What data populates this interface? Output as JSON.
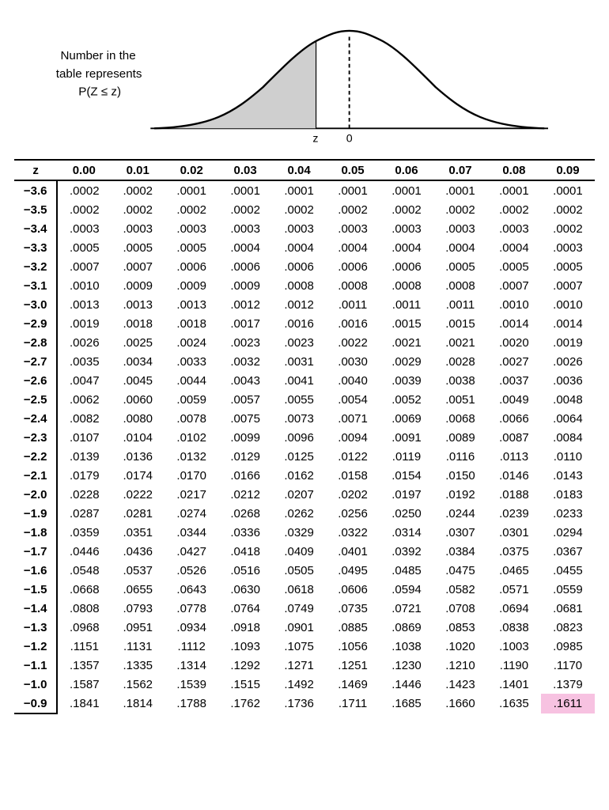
{
  "diagram": {
    "caption_line1": "Number in the",
    "caption_line2": "table represents",
    "caption_line3": "P(Z ≤ z)",
    "z_label": "z",
    "zero_label": "0",
    "curve_stroke": "#000000",
    "curve_fill_shaded": "#cfcfcf",
    "background": "#ffffff",
    "axis_stroke": "#000000"
  },
  "table": {
    "highlight_color": "#f7c2e1",
    "border_color": "#000000",
    "font_size": 15,
    "columns": [
      "z",
      "0.00",
      "0.01",
      "0.02",
      "0.03",
      "0.04",
      "0.05",
      "0.06",
      "0.07",
      "0.08",
      "0.09"
    ],
    "highlighted": {
      "row_index": 27,
      "col_index": 10
    },
    "rows": [
      [
        "−3.6",
        ".0002",
        ".0002",
        ".0001",
        ".0001",
        ".0001",
        ".0001",
        ".0001",
        ".0001",
        ".0001",
        ".0001"
      ],
      [
        "−3.5",
        ".0002",
        ".0002",
        ".0002",
        ".0002",
        ".0002",
        ".0002",
        ".0002",
        ".0002",
        ".0002",
        ".0002"
      ],
      [
        "−3.4",
        ".0003",
        ".0003",
        ".0003",
        ".0003",
        ".0003",
        ".0003",
        ".0003",
        ".0003",
        ".0003",
        ".0002"
      ],
      [
        "−3.3",
        ".0005",
        ".0005",
        ".0005",
        ".0004",
        ".0004",
        ".0004",
        ".0004",
        ".0004",
        ".0004",
        ".0003"
      ],
      [
        "−3.2",
        ".0007",
        ".0007",
        ".0006",
        ".0006",
        ".0006",
        ".0006",
        ".0006",
        ".0005",
        ".0005",
        ".0005"
      ],
      [
        "−3.1",
        ".0010",
        ".0009",
        ".0009",
        ".0009",
        ".0008",
        ".0008",
        ".0008",
        ".0008",
        ".0007",
        ".0007"
      ],
      [
        "−3.0",
        ".0013",
        ".0013",
        ".0013",
        ".0012",
        ".0012",
        ".0011",
        ".0011",
        ".0011",
        ".0010",
        ".0010"
      ],
      [
        "−2.9",
        ".0019",
        ".0018",
        ".0018",
        ".0017",
        ".0016",
        ".0016",
        ".0015",
        ".0015",
        ".0014",
        ".0014"
      ],
      [
        "−2.8",
        ".0026",
        ".0025",
        ".0024",
        ".0023",
        ".0023",
        ".0022",
        ".0021",
        ".0021",
        ".0020",
        ".0019"
      ],
      [
        "−2.7",
        ".0035",
        ".0034",
        ".0033",
        ".0032",
        ".0031",
        ".0030",
        ".0029",
        ".0028",
        ".0027",
        ".0026"
      ],
      [
        "−2.6",
        ".0047",
        ".0045",
        ".0044",
        ".0043",
        ".0041",
        ".0040",
        ".0039",
        ".0038",
        ".0037",
        ".0036"
      ],
      [
        "−2.5",
        ".0062",
        ".0060",
        ".0059",
        ".0057",
        ".0055",
        ".0054",
        ".0052",
        ".0051",
        ".0049",
        ".0048"
      ],
      [
        "−2.4",
        ".0082",
        ".0080",
        ".0078",
        ".0075",
        ".0073",
        ".0071",
        ".0069",
        ".0068",
        ".0066",
        ".0064"
      ],
      [
        "−2.3",
        ".0107",
        ".0104",
        ".0102",
        ".0099",
        ".0096",
        ".0094",
        ".0091",
        ".0089",
        ".0087",
        ".0084"
      ],
      [
        "−2.2",
        ".0139",
        ".0136",
        ".0132",
        ".0129",
        ".0125",
        ".0122",
        ".0119",
        ".0116",
        ".0113",
        ".0110"
      ],
      [
        "−2.1",
        ".0179",
        ".0174",
        ".0170",
        ".0166",
        ".0162",
        ".0158",
        ".0154",
        ".0150",
        ".0146",
        ".0143"
      ],
      [
        "−2.0",
        ".0228",
        ".0222",
        ".0217",
        ".0212",
        ".0207",
        ".0202",
        ".0197",
        ".0192",
        ".0188",
        ".0183"
      ],
      [
        "−1.9",
        ".0287",
        ".0281",
        ".0274",
        ".0268",
        ".0262",
        ".0256",
        ".0250",
        ".0244",
        ".0239",
        ".0233"
      ],
      [
        "−1.8",
        ".0359",
        ".0351",
        ".0344",
        ".0336",
        ".0329",
        ".0322",
        ".0314",
        ".0307",
        ".0301",
        ".0294"
      ],
      [
        "−1.7",
        ".0446",
        ".0436",
        ".0427",
        ".0418",
        ".0409",
        ".0401",
        ".0392",
        ".0384",
        ".0375",
        ".0367"
      ],
      [
        "−1.6",
        ".0548",
        ".0537",
        ".0526",
        ".0516",
        ".0505",
        ".0495",
        ".0485",
        ".0475",
        ".0465",
        ".0455"
      ],
      [
        "−1.5",
        ".0668",
        ".0655",
        ".0643",
        ".0630",
        ".0618",
        ".0606",
        ".0594",
        ".0582",
        ".0571",
        ".0559"
      ],
      [
        "−1.4",
        ".0808",
        ".0793",
        ".0778",
        ".0764",
        ".0749",
        ".0735",
        ".0721",
        ".0708",
        ".0694",
        ".0681"
      ],
      [
        "−1.3",
        ".0968",
        ".0951",
        ".0934",
        ".0918",
        ".0901",
        ".0885",
        ".0869",
        ".0853",
        ".0838",
        ".0823"
      ],
      [
        "−1.2",
        ".1151",
        ".1131",
        ".1112",
        ".1093",
        ".1075",
        ".1056",
        ".1038",
        ".1020",
        ".1003",
        ".0985"
      ],
      [
        "−1.1",
        ".1357",
        ".1335",
        ".1314",
        ".1292",
        ".1271",
        ".1251",
        ".1230",
        ".1210",
        ".1190",
        ".1170"
      ],
      [
        "−1.0",
        ".1587",
        ".1562",
        ".1539",
        ".1515",
        ".1492",
        ".1469",
        ".1446",
        ".1423",
        ".1401",
        ".1379"
      ],
      [
        "−0.9",
        ".1841",
        ".1814",
        ".1788",
        ".1762",
        ".1736",
        ".1711",
        ".1685",
        ".1660",
        ".1635",
        ".1611"
      ]
    ]
  }
}
